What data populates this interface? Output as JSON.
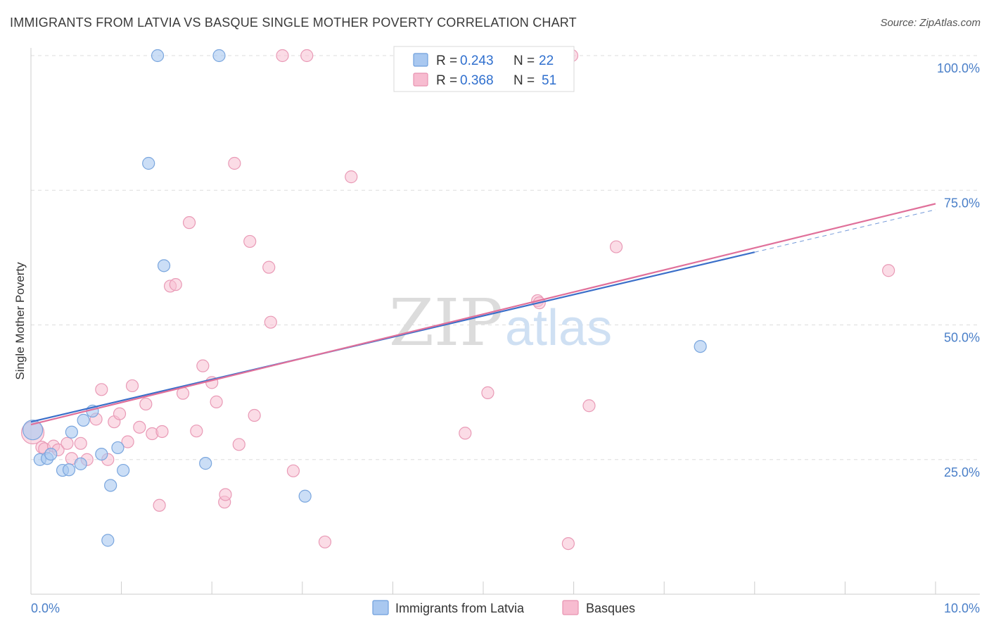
{
  "title": "IMMIGRANTS FROM LATVIA VS BASQUE SINGLE MOTHER POVERTY CORRELATION CHART",
  "source": "Source: ZipAtlas.com",
  "watermark": {
    "zip": "ZIP",
    "atlas": "atlas"
  },
  "legend": {
    "r_label": "R =",
    "n_label": "N =",
    "rows": [
      {
        "r": "0.243",
        "n": "22",
        "color": "#a9c8f0",
        "stroke": "#6f9fdc"
      },
      {
        "r": "0.368",
        "n": "51",
        "color": "#f7bcd0",
        "stroke": "#e893b1"
      }
    ]
  },
  "colors": {
    "latvia_fill": "#a9c8f0",
    "latvia_stroke": "#7aa6de",
    "latvia_line": "#3b6fc9",
    "basque_fill": "#f7c0d2",
    "basque_stroke": "#e99ab6",
    "basque_line": "#e0709a",
    "grid": "#dddddd",
    "tick_text": "#4a7fc8"
  },
  "chart_data": {
    "type": "scatter",
    "ylabel": "Single Mother Poverty",
    "xlim": [
      0,
      10
    ],
    "ylim": [
      0,
      100
    ],
    "x_tick_labels": [
      "0.0%",
      "10.0%"
    ],
    "y_ticks": [
      25,
      50,
      75,
      100
    ],
    "y_tick_labels": [
      "25.0%",
      "50.0%",
      "75.0%",
      "100.0%"
    ],
    "grid": true,
    "series": [
      {
        "name": "Immigrants from Latvia",
        "points": [
          [
            0.02,
            30.5
          ],
          [
            0.1,
            25.0
          ],
          [
            0.18,
            25.2
          ],
          [
            0.22,
            26.0
          ],
          [
            0.35,
            23.0
          ],
          [
            0.42,
            23.1
          ],
          [
            0.45,
            30.1
          ],
          [
            0.55,
            24.2
          ],
          [
            0.58,
            32.3
          ],
          [
            0.68,
            34.0
          ],
          [
            0.78,
            26.0
          ],
          [
            0.85,
            10.0
          ],
          [
            0.88,
            20.2
          ],
          [
            0.96,
            27.2
          ],
          [
            1.02,
            23.0
          ],
          [
            1.3,
            80.0
          ],
          [
            1.4,
            100.0
          ],
          [
            1.47,
            61.0
          ],
          [
            1.93,
            24.3
          ],
          [
            2.08,
            100.0
          ],
          [
            3.03,
            18.2
          ],
          [
            7.4,
            46.0
          ]
        ],
        "trend": {
          "x0": 0.0,
          "y0": 32.0,
          "x1": 8.0,
          "y1": 63.5,
          "dash_to_x": 10.0,
          "dash_to_y": 71.4
        }
      },
      {
        "name": "Basques",
        "points": [
          [
            0.02,
            30.0
          ],
          [
            0.12,
            27.3
          ],
          [
            0.15,
            27.0
          ],
          [
            0.25,
            27.5
          ],
          [
            0.3,
            26.8
          ],
          [
            0.4,
            28.0
          ],
          [
            0.45,
            25.2
          ],
          [
            0.55,
            28.0
          ],
          [
            0.62,
            25.0
          ],
          [
            0.72,
            32.5
          ],
          [
            0.78,
            38.0
          ],
          [
            0.85,
            25.0
          ],
          [
            0.92,
            32.0
          ],
          [
            0.98,
            33.5
          ],
          [
            1.07,
            28.3
          ],
          [
            1.12,
            38.7
          ],
          [
            1.2,
            31.0
          ],
          [
            1.27,
            35.3
          ],
          [
            1.34,
            29.8
          ],
          [
            1.42,
            16.5
          ],
          [
            1.45,
            30.2
          ],
          [
            1.54,
            57.2
          ],
          [
            1.6,
            57.5
          ],
          [
            1.68,
            37.3
          ],
          [
            1.75,
            69.0
          ],
          [
            1.83,
            30.3
          ],
          [
            1.9,
            42.4
          ],
          [
            2.0,
            39.3
          ],
          [
            2.05,
            35.7
          ],
          [
            2.14,
            17.1
          ],
          [
            2.15,
            18.5
          ],
          [
            2.25,
            80.0
          ],
          [
            2.3,
            27.8
          ],
          [
            2.42,
            65.5
          ],
          [
            2.47,
            33.2
          ],
          [
            2.63,
            60.7
          ],
          [
            2.65,
            50.5
          ],
          [
            2.78,
            100.0
          ],
          [
            2.9,
            22.9
          ],
          [
            3.05,
            100.0
          ],
          [
            3.25,
            9.7
          ],
          [
            3.54,
            77.5
          ],
          [
            4.8,
            29.9
          ],
          [
            5.05,
            37.4
          ],
          [
            5.6,
            54.5
          ],
          [
            5.62,
            54.1
          ],
          [
            5.94,
            9.4
          ],
          [
            5.98,
            100.0
          ],
          [
            6.17,
            35.0
          ],
          [
            6.47,
            64.5
          ],
          [
            9.48,
            60.1
          ]
        ],
        "trend": {
          "x0": 0.0,
          "y0": 31.5,
          "x1": 10.0,
          "y1": 72.5
        }
      }
    ]
  }
}
